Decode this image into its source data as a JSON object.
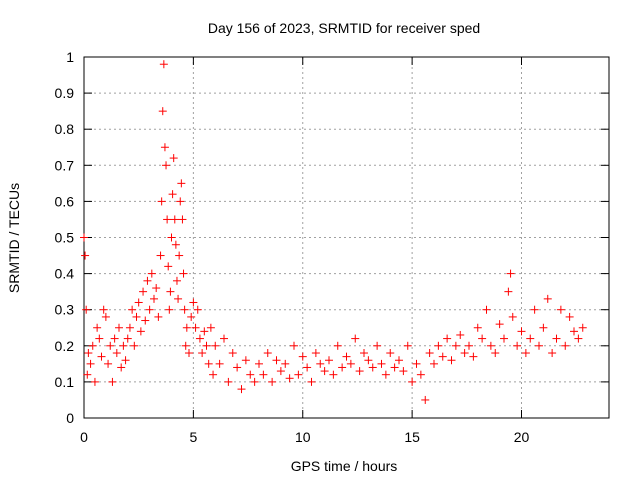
{
  "chart_data": {
    "type": "scatter",
    "title": "Day 156 of 2023, SRMTID for receiver sped",
    "xlabel": "GPS time / hours",
    "ylabel": "SRMTID / TECUs",
    "xlim": [
      0,
      24
    ],
    "ylim": [
      0,
      1
    ],
    "xticks": [
      0,
      5,
      10,
      15,
      20
    ],
    "xtick_labels": [
      "0",
      "5",
      "10",
      "15",
      "20"
    ],
    "yticks": [
      0,
      0.1,
      0.2,
      0.3,
      0.4,
      0.5,
      0.6,
      0.7,
      0.8,
      0.9,
      1
    ],
    "ytick_labels": [
      "0",
      "0.1",
      "0.2",
      "0.3",
      "0.4",
      "0.5",
      "0.6",
      "0.7",
      "0.8",
      "0.9",
      "1"
    ],
    "grid": true,
    "marker": "+",
    "color": "#ff0000",
    "series": [
      {
        "name": "SRMTID",
        "x": [
          0.0,
          0.05,
          0.1,
          0.15,
          0.2,
          0.3,
          0.4,
          0.5,
          0.6,
          0.7,
          0.8,
          0.9,
          1.0,
          1.1,
          1.2,
          1.3,
          1.4,
          1.5,
          1.6,
          1.7,
          1.8,
          1.9,
          2.0,
          2.1,
          2.2,
          2.3,
          2.4,
          2.5,
          2.6,
          2.7,
          2.8,
          2.9,
          3.0,
          3.1,
          3.2,
          3.3,
          3.4,
          3.5,
          3.55,
          3.6,
          3.65,
          3.7,
          3.75,
          3.8,
          3.85,
          3.9,
          3.95,
          4.0,
          4.05,
          4.1,
          4.15,
          4.2,
          4.25,
          4.3,
          4.35,
          4.4,
          4.45,
          4.5,
          4.55,
          4.6,
          4.65,
          4.7,
          4.8,
          4.9,
          5.0,
          5.1,
          5.2,
          5.3,
          5.4,
          5.5,
          5.6,
          5.7,
          5.8,
          5.9,
          6.0,
          6.2,
          6.4,
          6.6,
          6.8,
          7.0,
          7.2,
          7.4,
          7.6,
          7.8,
          8.0,
          8.2,
          8.4,
          8.6,
          8.8,
          9.0,
          9.2,
          9.4,
          9.6,
          9.8,
          10.0,
          10.2,
          10.4,
          10.6,
          10.8,
          11.0,
          11.2,
          11.4,
          11.6,
          11.8,
          12.0,
          12.2,
          12.4,
          12.6,
          12.8,
          13.0,
          13.2,
          13.4,
          13.6,
          13.8,
          14.0,
          14.2,
          14.4,
          14.6,
          14.8,
          15.0,
          15.2,
          15.4,
          15.6,
          15.8,
          16.0,
          16.2,
          16.4,
          16.6,
          16.8,
          17.0,
          17.2,
          17.4,
          17.6,
          17.8,
          18.0,
          18.2,
          18.4,
          18.6,
          18.8,
          19.0,
          19.2,
          19.4,
          19.5,
          19.6,
          19.8,
          20.0,
          20.2,
          20.4,
          20.6,
          20.8,
          21.0,
          21.2,
          21.4,
          21.6,
          21.8,
          22.0,
          22.2,
          22.4,
          22.6,
          22.8
        ],
        "y": [
          0.5,
          0.45,
          0.3,
          0.12,
          0.18,
          0.15,
          0.2,
          0.1,
          0.25,
          0.22,
          0.17,
          0.3,
          0.28,
          0.15,
          0.2,
          0.1,
          0.22,
          0.18,
          0.25,
          0.14,
          0.2,
          0.16,
          0.22,
          0.25,
          0.3,
          0.2,
          0.28,
          0.32,
          0.24,
          0.35,
          0.27,
          0.38,
          0.3,
          0.4,
          0.33,
          0.36,
          0.28,
          0.45,
          0.6,
          0.85,
          0.98,
          0.75,
          0.7,
          0.55,
          0.42,
          0.3,
          0.35,
          0.5,
          0.62,
          0.72,
          0.55,
          0.48,
          0.38,
          0.33,
          0.45,
          0.6,
          0.65,
          0.55,
          0.4,
          0.3,
          0.2,
          0.25,
          0.18,
          0.28,
          0.32,
          0.25,
          0.3,
          0.22,
          0.18,
          0.24,
          0.2,
          0.15,
          0.25,
          0.12,
          0.2,
          0.15,
          0.22,
          0.1,
          0.18,
          0.14,
          0.08,
          0.16,
          0.12,
          0.1,
          0.15,
          0.12,
          0.18,
          0.1,
          0.16,
          0.13,
          0.15,
          0.11,
          0.2,
          0.12,
          0.17,
          0.14,
          0.1,
          0.18,
          0.15,
          0.13,
          0.16,
          0.12,
          0.2,
          0.14,
          0.17,
          0.15,
          0.22,
          0.13,
          0.18,
          0.16,
          0.14,
          0.2,
          0.15,
          0.12,
          0.18,
          0.14,
          0.16,
          0.13,
          0.2,
          0.1,
          0.15,
          0.12,
          0.05,
          0.18,
          0.15,
          0.2,
          0.17,
          0.22,
          0.16,
          0.2,
          0.23,
          0.18,
          0.2,
          0.17,
          0.25,
          0.22,
          0.3,
          0.2,
          0.18,
          0.26,
          0.22,
          0.35,
          0.4,
          0.28,
          0.2,
          0.24,
          0.18,
          0.22,
          0.3,
          0.2,
          0.25,
          0.33,
          0.18,
          0.22,
          0.3,
          0.2,
          0.28,
          0.24,
          0.22,
          0.25
        ]
      }
    ]
  }
}
